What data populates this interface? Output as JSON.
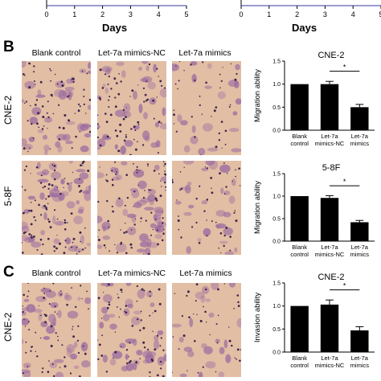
{
  "top": {
    "axis_label": "Days",
    "ticks": [
      "0",
      "1",
      "2",
      "3",
      "4",
      "5"
    ]
  },
  "panels": {
    "B": "B",
    "C": "C"
  },
  "columns": [
    "Blank control",
    "Let-7a mimics-NC",
    "Let-7a mimics"
  ],
  "rows": {
    "b1": "CNE-2",
    "b2": "5-8F",
    "c1": "CNE-2"
  },
  "colors": {
    "bar": "#000000",
    "stain_bg": "#e2bea4",
    "stain_cell": "#9a6aa0",
    "stain_dot": "#3b2550"
  },
  "chart_data": [
    {
      "type": "bar",
      "title": "CNE-2",
      "ylabel": "Migration ability",
      "categories": [
        "Blank\ncontrol",
        "Let-7a\nmimics-NC",
        "Let-7a\nmimics"
      ],
      "values": [
        1.0,
        1.0,
        0.5
      ],
      "errors": [
        0.0,
        0.06,
        0.06
      ],
      "ylim": [
        0,
        1.5
      ],
      "yticks": [
        "0.0",
        "0.5",
        "1.0",
        "1.5"
      ],
      "significance": {
        "from": 1,
        "to": 2,
        "label": "*"
      }
    },
    {
      "type": "bar",
      "title": "5-8F",
      "ylabel": "Migration ability",
      "categories": [
        "Blank\ncontrol",
        "Let-7a\nmimics-NC",
        "Let-7a\nmimics"
      ],
      "values": [
        1.0,
        0.96,
        0.42
      ],
      "errors": [
        0.0,
        0.05,
        0.04
      ],
      "ylim": [
        0,
        1.5
      ],
      "yticks": [
        "0.0",
        "0.5",
        "1.0",
        "1.5"
      ],
      "significance": {
        "from": 1,
        "to": 2,
        "label": "*"
      }
    },
    {
      "type": "bar",
      "title": "CNE-2",
      "ylabel": "Invasion ability",
      "categories": [
        "Blank\ncontrol",
        "Let-7a\nmimics-NC",
        "Let-7a\nmimics"
      ],
      "values": [
        1.0,
        1.03,
        0.47
      ],
      "errors": [
        0.0,
        0.1,
        0.08
      ],
      "ylim": [
        0,
        1.5
      ],
      "yticks": [
        "0.0",
        "0.5",
        "1.0",
        "1.5"
      ],
      "significance": {
        "from": 1,
        "to": 2,
        "label": "*"
      }
    }
  ]
}
